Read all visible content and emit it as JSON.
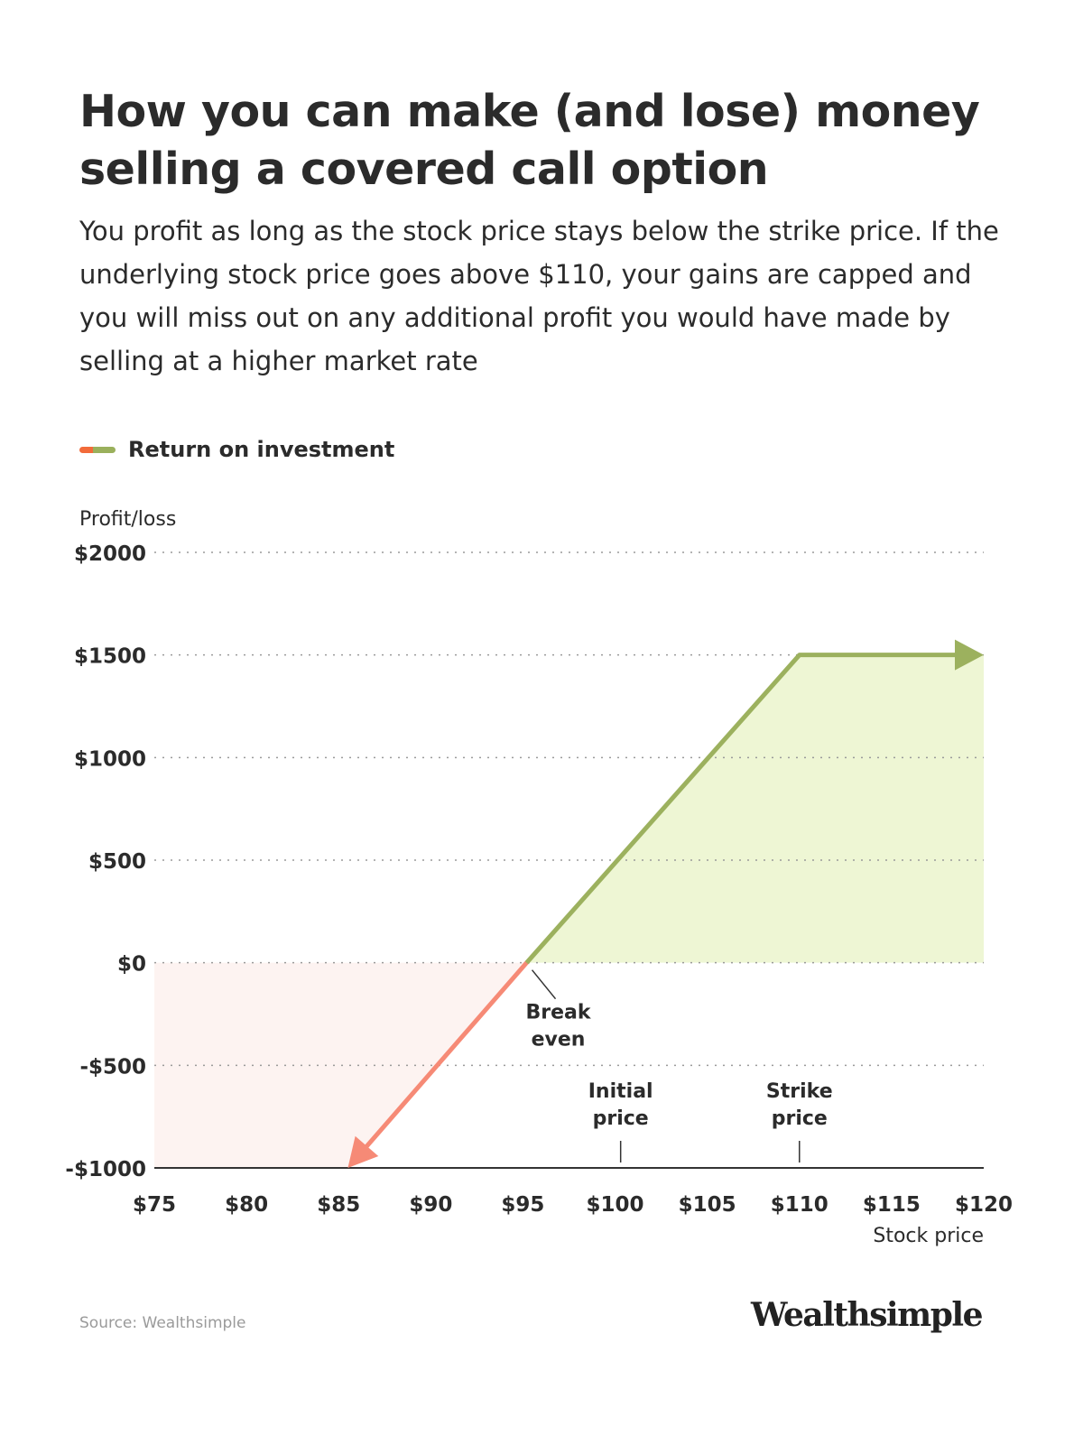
{
  "header": {
    "title": "How you can make (and lose) money selling a covered call option",
    "subtitle": "You profit as long as the stock price stays below the strike price. If the underlying stock price goes above $110, your gains are capped and you will miss out on any additional profit you would have made by selling at a higher market rate"
  },
  "legend": {
    "label": "Return on investment",
    "colors": [
      "#f26b3a",
      "#9ab05c"
    ]
  },
  "colors": {
    "profit_line": "#9cb15e",
    "profit_fill": "#eef6d4",
    "loss_line": "#f68a76",
    "loss_fill": "#fdf3f1",
    "grid": "#9a9a9a",
    "axis": "#333333"
  },
  "chart_data": {
    "type": "line",
    "title": "How you can make (and lose) money selling a covered call option",
    "ylabel": "Profit/loss",
    "xlabel": "Stock price",
    "xlim": [
      75,
      120
    ],
    "ylim": [
      -1000,
      2000
    ],
    "grid": true,
    "legend_placement": "top-left",
    "x_ticks": [
      75,
      80,
      85,
      90,
      95,
      100,
      105,
      110,
      115,
      120
    ],
    "x_tick_labels": [
      "$75",
      "$80",
      "$85",
      "$90",
      "$95",
      "$100",
      "$105",
      "$110",
      "$115",
      "$120"
    ],
    "y_ticks": [
      2000,
      1500,
      1000,
      500,
      0,
      -500,
      -1000
    ],
    "y_tick_labels": [
      "$2000",
      "$1500",
      "$1000",
      "$500",
      "$0",
      "-$500",
      "-$1000"
    ],
    "series": [
      {
        "name": "Return on investment",
        "points": [
          [
            85.5,
            -1000
          ],
          [
            95.2,
            0
          ],
          [
            110,
            1500
          ],
          [
            120,
            1500
          ]
        ]
      }
    ],
    "annotations": [
      {
        "text": "Break even",
        "lines": [
          "Break",
          "even"
        ],
        "x": 95.2,
        "y": 0,
        "kind": "leader"
      },
      {
        "text": "Initial price",
        "lines": [
          "Initial",
          "price"
        ],
        "x": 100.3,
        "y": -1000,
        "kind": "tick"
      },
      {
        "text": "Strike price",
        "lines": [
          "Strike",
          "price"
        ],
        "x": 110,
        "y": -1000,
        "kind": "tick"
      }
    ]
  },
  "footer": {
    "source": "Source: Wealthsimple",
    "brand": "Wealthsimple"
  }
}
